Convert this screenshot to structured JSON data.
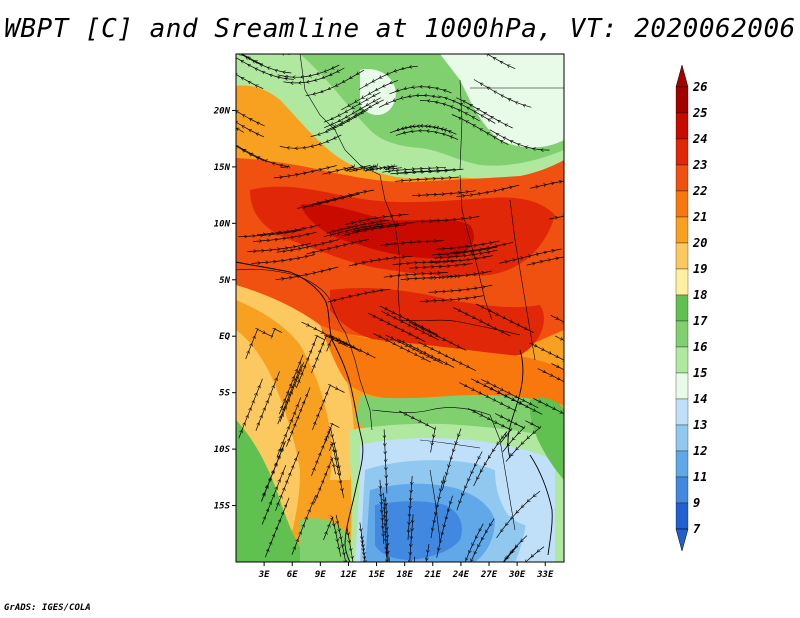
{
  "title": "WBPT [C] and Sreamline at 1000hPa, VT: 2020062006",
  "credit": "GrADS: IGES/COLA",
  "map": {
    "lon_min": 0,
    "lon_max": 35,
    "lat_min": -20,
    "lat_max": 25,
    "x_ticks": [
      "3E",
      "6E",
      "9E",
      "12E",
      "15E",
      "18E",
      "21E",
      "24E",
      "27E",
      "30E",
      "33E"
    ],
    "x_tick_values": [
      3,
      6,
      9,
      12,
      15,
      18,
      21,
      24,
      27,
      30,
      33
    ],
    "y_ticks": [
      "20N",
      "15N",
      "10N",
      "5N",
      "EQ",
      "5S",
      "10S",
      "15S"
    ],
    "y_tick_values": [
      20,
      15,
      10,
      5,
      0,
      -5,
      -10,
      -15
    ]
  },
  "colorbar": {
    "labels": [
      "26",
      "25",
      "24",
      "23",
      "22",
      "21",
      "20",
      "19",
      "18",
      "17",
      "16",
      "15",
      "14",
      "13",
      "12",
      "11",
      "9",
      "7"
    ],
    "colors": [
      "#a50000",
      "#c80a00",
      "#e02808",
      "#f05010",
      "#f8780e",
      "#f8a020",
      "#fcc860",
      "#fff0a0",
      "#60c050",
      "#80d070",
      "#b0e8a0",
      "#e8fae8",
      "#c0e0fa",
      "#90c8f0",
      "#60a8e8",
      "#4088e0",
      "#2060d0"
    ],
    "top_arrow_color": "#a50000",
    "bottom_arrow_color": "#2060d0"
  }
}
